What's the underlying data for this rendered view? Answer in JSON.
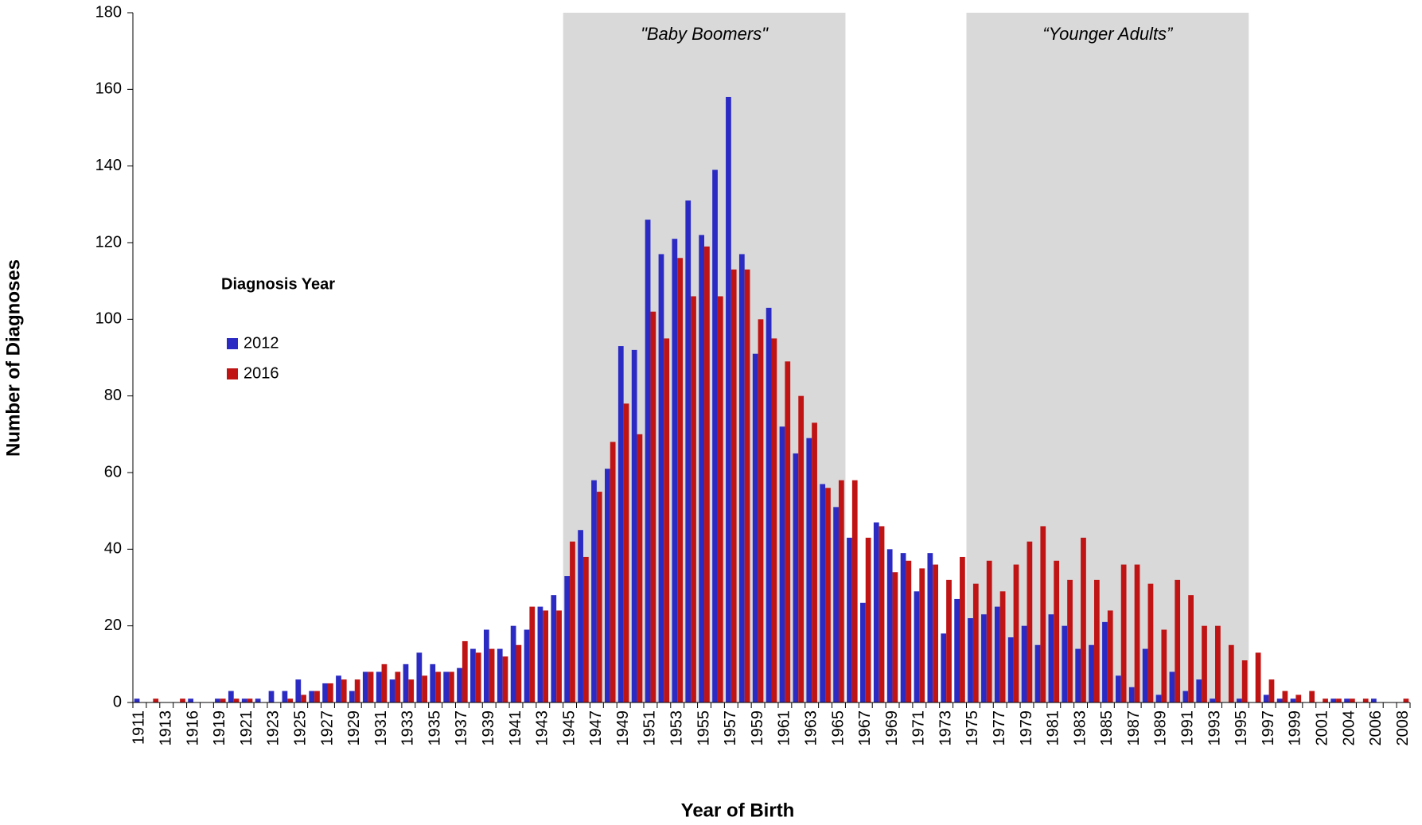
{
  "chart_data": {
    "type": "bar",
    "x_label": "Year of Birth",
    "y_label": "Number of Diagnoses",
    "legend_title": "Diagnosis Year",
    "categories": [
      "1911",
      null,
      "1913",
      null,
      "1916",
      null,
      "1919",
      null,
      "1921",
      null,
      "1923",
      null,
      "1925",
      null,
      "1927",
      null,
      "1929",
      null,
      "1931",
      null,
      "1933",
      null,
      "1935",
      null,
      "1937",
      null,
      "1939",
      null,
      "1941",
      null,
      "1943",
      null,
      "1945",
      null,
      "1947",
      null,
      "1949",
      null,
      "1951",
      null,
      "1953",
      null,
      "1955",
      null,
      "1957",
      null,
      "1959",
      null,
      "1961",
      null,
      "1963",
      null,
      "1965",
      null,
      "1967",
      null,
      "1969",
      null,
      "1971",
      null,
      "1973",
      null,
      "1975",
      null,
      "1977",
      null,
      "1979",
      null,
      "1981",
      null,
      "1983",
      null,
      "1985",
      null,
      "1987",
      null,
      "1989",
      null,
      "1991",
      null,
      "1993",
      null,
      "1995",
      null,
      "1997",
      null,
      "1999",
      null,
      "2001",
      null,
      "2004",
      null,
      "2006",
      null,
      "2008"
    ],
    "series": [
      {
        "name": "2012",
        "color": "#2b2bc4",
        "values": [
          1,
          0,
          0,
          0,
          1,
          0,
          1,
          3,
          1,
          1,
          3,
          3,
          6,
          3,
          5,
          7,
          3,
          8,
          8,
          6,
          10,
          13,
          10,
          8,
          9,
          14,
          19,
          14,
          20,
          19,
          25,
          28,
          33,
          45,
          58,
          61,
          93,
          92,
          126,
          117,
          121,
          131,
          122,
          139,
          158,
          117,
          91,
          103,
          72,
          65,
          69,
          57,
          51,
          43,
          26,
          47,
          40,
          39,
          29,
          39,
          18,
          27,
          22,
          23,
          25,
          17,
          20,
          15,
          23,
          20,
          14,
          15,
          21,
          7,
          4,
          14,
          2,
          8,
          3,
          6,
          1,
          0,
          1,
          0,
          2,
          1,
          1,
          0,
          0,
          1,
          1,
          0,
          1,
          0,
          0
        ]
      },
      {
        "name": "2016",
        "color": "#c01414",
        "values": [
          0,
          1,
          0,
          1,
          0,
          0,
          1,
          1,
          1,
          0,
          0,
          1,
          2,
          3,
          5,
          6,
          6,
          8,
          10,
          8,
          6,
          7,
          8,
          8,
          16,
          13,
          14,
          12,
          15,
          25,
          24,
          24,
          42,
          38,
          55,
          68,
          78,
          70,
          102,
          95,
          116,
          106,
          119,
          106,
          113,
          113,
          100,
          95,
          89,
          80,
          73,
          56,
          58,
          58,
          43,
          46,
          34,
          37,
          35,
          36,
          32,
          38,
          31,
          37,
          29,
          36,
          42,
          46,
          37,
          32,
          43,
          32,
          24,
          36,
          36,
          31,
          19,
          32,
          28,
          20,
          20,
          15,
          11,
          13,
          6,
          3,
          2,
          3,
          1,
          1,
          1,
          1,
          0,
          0,
          1
        ]
      }
    ],
    "regions": [
      {
        "label": "\"Baby Boomers\"",
        "from": "1945",
        "to": "1965"
      },
      {
        "label": "“Younger Adults”",
        "from": "1975",
        "to": "1995"
      }
    ],
    "ylim": [
      0,
      180
    ],
    "yticks": [
      0,
      20,
      40,
      60,
      80,
      100,
      120,
      140,
      160,
      180
    ],
    "grid": false
  }
}
